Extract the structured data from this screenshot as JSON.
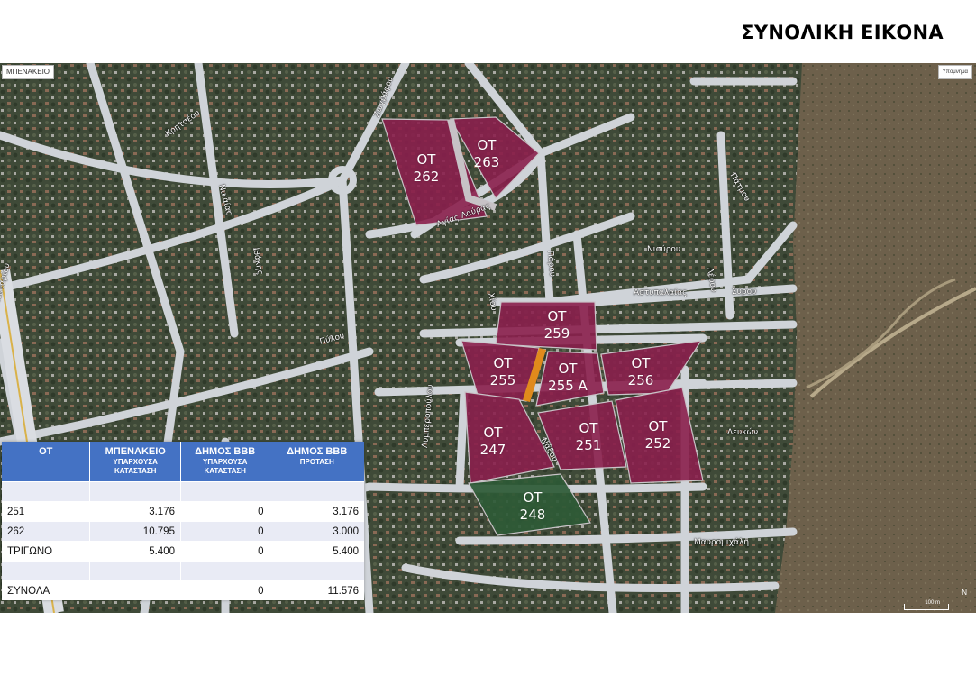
{
  "page_title": "ΣΥΝΟΛΙΚΗ ΕΙΚΟΝΑ",
  "map": {
    "corner_tag_left": "ΜΠΕΝΑΚΕΙΟ",
    "corner_tag_right": "Υπόμνημα",
    "scale_label": "100 m",
    "north_label": "N",
    "colors": {
      "block_purple": "#8a1f4c",
      "block_green": "#2e5a36",
      "strip_orange": "#e08a1c",
      "road": "#cfd3d8"
    },
    "blocks": [
      {
        "id": "262",
        "line1": "ΟΤ",
        "line2": "262",
        "color": "purple"
      },
      {
        "id": "263",
        "line1": "ΟΤ",
        "line2": "263",
        "color": "purple"
      },
      {
        "id": "259",
        "line1": "ΟΤ",
        "line2": "259",
        "color": "purple"
      },
      {
        "id": "255",
        "line1": "ΟΤ",
        "line2": "255",
        "color": "purple"
      },
      {
        "id": "255a",
        "line1": "ΟΤ",
        "line2": "255 Α",
        "color": "purple"
      },
      {
        "id": "256",
        "line1": "ΟΤ",
        "line2": "256",
        "color": "purple"
      },
      {
        "id": "247",
        "line1": "ΟΤ",
        "line2": "247",
        "color": "purple"
      },
      {
        "id": "251",
        "line1": "ΟΤ",
        "line2": "251",
        "color": "purple"
      },
      {
        "id": "252",
        "line1": "ΟΤ",
        "line2": "252",
        "color": "purple"
      },
      {
        "id": "248",
        "line1": "ΟΤ",
        "line2": "248",
        "color": "green"
      }
    ],
    "streets": [
      {
        "id": "kritsa",
        "name": "Κρητσέου"
      },
      {
        "id": "nikaia",
        "name": "Νικαίας"
      },
      {
        "id": "ithaki",
        "name": "Ιθάκης"
      },
      {
        "id": "pylos",
        "name": "Πύλου"
      },
      {
        "id": "agias-lavras",
        "name": "Αγίας Λαύρας"
      },
      {
        "id": "paros",
        "name": "Πάρου"
      },
      {
        "id": "nisyros",
        "name": "Νισύρου"
      },
      {
        "id": "astypalaia",
        "name": "Αστυπαλαίας"
      },
      {
        "id": "syros",
        "name": "Σύρου"
      },
      {
        "id": "lerou",
        "name": "Λέρου"
      },
      {
        "id": "patmos",
        "name": "Πάτμου"
      },
      {
        "id": "chiou",
        "name": "Χίου"
      },
      {
        "id": "levkon",
        "name": "Λευκών"
      },
      {
        "id": "mavromichali",
        "name": "Μαυρομιχάλη"
      },
      {
        "id": "naxos",
        "name": "Νάξου"
      },
      {
        "id": "lymberopoulou",
        "name": "Λυμπεροπούλου"
      },
      {
        "id": "zografou",
        "name": "Ζωγράφου"
      },
      {
        "id": "agionemou",
        "name": "Αγ. Νεκταρίου"
      }
    ]
  },
  "table": {
    "headers": [
      {
        "title": "ΟΤ",
        "sub": ""
      },
      {
        "title": "ΜΠΕΝΑΚΕΙΟ",
        "sub": "ΥΠΑΡΧΟΥΣΑ ΚΑΤΑΣΤΑΣΗ"
      },
      {
        "title": "ΔΗΜΟΣ ΒΒΒ",
        "sub": "ΥΠΑΡΧΟΥΣΑ ΚΑΤΑΣΤΑΣΗ"
      },
      {
        "title": "ΔΗΜΟΣ ΒΒΒ",
        "sub": "ΠΡΟΤΑΣΗ"
      }
    ],
    "rows": [
      {
        "ot": "251",
        "benakeio": "3.176",
        "dimos_existing": "0",
        "dimos_proposal": "3.176"
      },
      {
        "ot": "262",
        "benakeio": "10.795",
        "dimos_existing": "0",
        "dimos_proposal": "3.000"
      },
      {
        "ot": "ΤΡΙΓΩΝΟ",
        "benakeio": "5.400",
        "dimos_existing": "0",
        "dimos_proposal": "5.400"
      }
    ],
    "totals": {
      "label": "ΣΥΝΟΛΑ",
      "benakeio": "",
      "dimos_existing": "0",
      "dimos_proposal": "11.576"
    }
  }
}
